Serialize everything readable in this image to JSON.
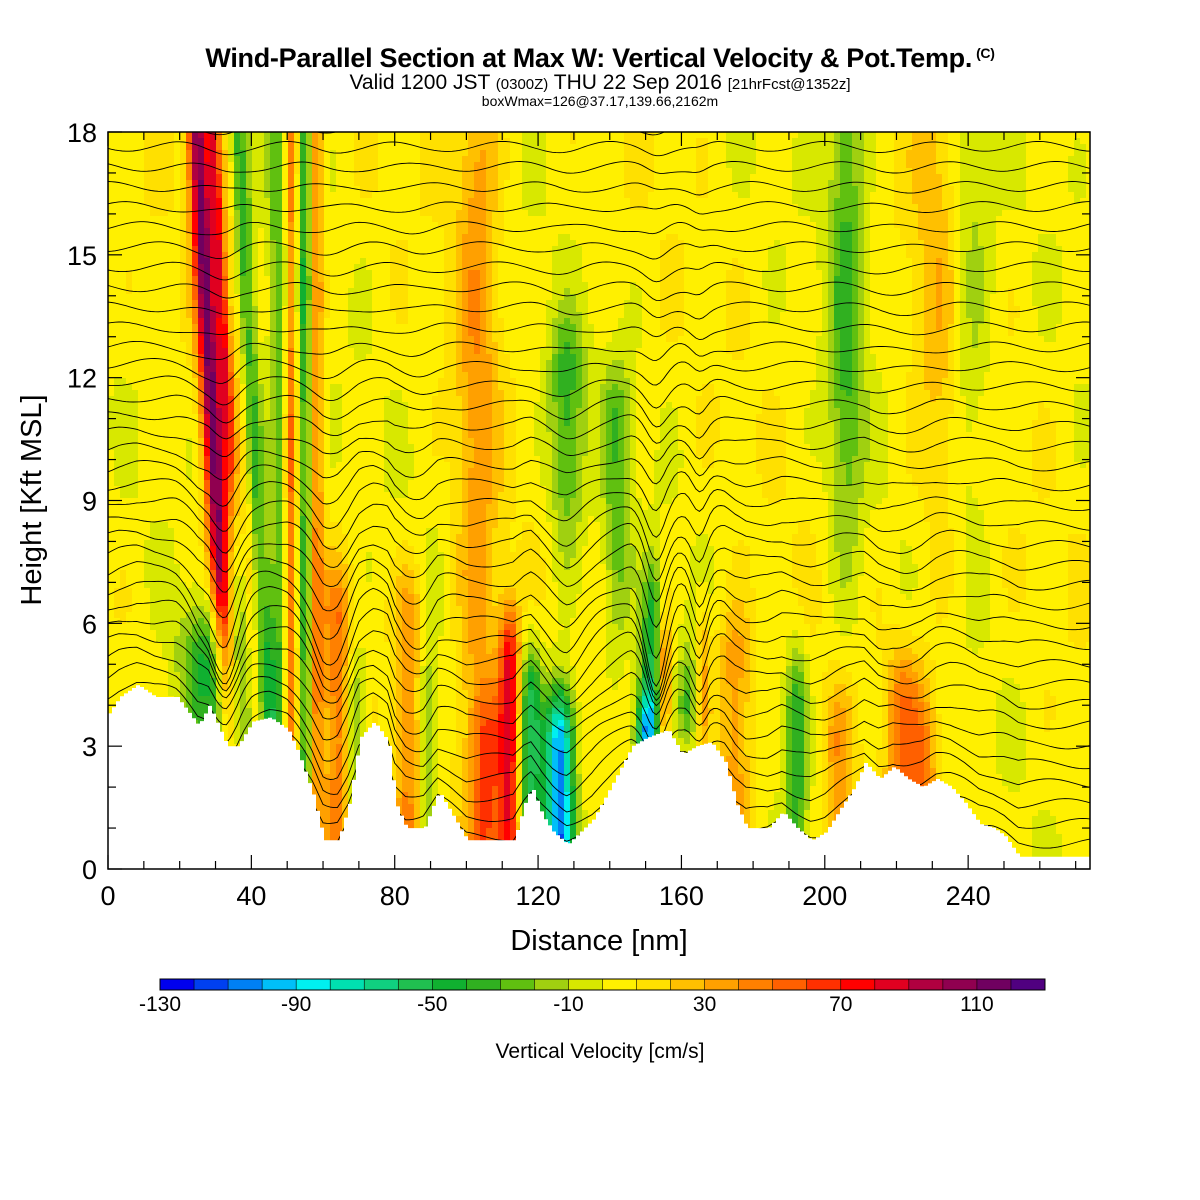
{
  "title": "Wind-Parallel Section at Max W: Vertical Velocity & Pot.Temp.",
  "title_mark": "(C)",
  "subtitle": {
    "pre": "Valid 1200 JST",
    "utc": "(0300Z)",
    "date": "THU 22 Sep 2016",
    "fcst": "[21hrFcst@1352z]"
  },
  "box_note": "boxWmax=126@37.17,139.66,2162m",
  "chart_data": {
    "type": "heatmap",
    "xlabel": "Distance [nm]",
    "ylabel": "Height [Kft MSL]",
    "xlim": [
      0,
      274
    ],
    "ylim": [
      0,
      18
    ],
    "x_ticks": [
      0,
      40,
      80,
      120,
      160,
      200,
      240
    ],
    "y_ticks": [
      0,
      3,
      6,
      9,
      12,
      15,
      18
    ],
    "colorbar": {
      "label": "Vertical Velocity [cm/s]",
      "min": -130,
      "max": 130,
      "step": 10,
      "tick_labels": [
        "-130",
        "-90",
        "-50",
        "-10",
        "30",
        "70",
        "110"
      ],
      "colors": [
        "#0000ee",
        "#0040f0",
        "#0080f4",
        "#00bff8",
        "#00f0f0",
        "#00e0b0",
        "#10d080",
        "#20c050",
        "#10b030",
        "#30b020",
        "#60c010",
        "#a0d010",
        "#d8e800",
        "#fff000",
        "#ffe000",
        "#ffc000",
        "#ffa000",
        "#ff8000",
        "#ff6000",
        "#ff3000",
        "#ff0000",
        "#e00020",
        "#b00040",
        "#900050",
        "#700060",
        "#500080"
      ]
    },
    "terrain_kft": [
      [
        0,
        3.8
      ],
      [
        3,
        4.2
      ],
      [
        8,
        4.5
      ],
      [
        13,
        4.2
      ],
      [
        19,
        4.2
      ],
      [
        25,
        3.5
      ],
      [
        28,
        4.0
      ],
      [
        33,
        3.0
      ],
      [
        36,
        3.0
      ],
      [
        40,
        3.6
      ],
      [
        45,
        3.7
      ],
      [
        50,
        3.4
      ],
      [
        53,
        2.8
      ],
      [
        57,
        1.8
      ],
      [
        60,
        0.7
      ],
      [
        64,
        0.7
      ],
      [
        67,
        1.6
      ],
      [
        70,
        3.2
      ],
      [
        74,
        3.6
      ],
      [
        78,
        3.1
      ],
      [
        80,
        1.6
      ],
      [
        83,
        1.0
      ],
      [
        88,
        1.0
      ],
      [
        92,
        1.9
      ],
      [
        96,
        1.3
      ],
      [
        100,
        0.7
      ],
      [
        113,
        0.7
      ],
      [
        116,
        1.6
      ],
      [
        118,
        2.0
      ],
      [
        121,
        1.3
      ],
      [
        124,
        0.9
      ],
      [
        128,
        0.6
      ],
      [
        135,
        1.2
      ],
      [
        140,
        2.0
      ],
      [
        146,
        3.0
      ],
      [
        150,
        3.2
      ],
      [
        156,
        3.4
      ],
      [
        160,
        2.8
      ],
      [
        164,
        3.0
      ],
      [
        168,
        3.1
      ],
      [
        172,
        2.6
      ],
      [
        175,
        1.6
      ],
      [
        178,
        1.0
      ],
      [
        184,
        1.0
      ],
      [
        188,
        1.4
      ],
      [
        192,
        1.0
      ],
      [
        196,
        0.7
      ],
      [
        200,
        0.9
      ],
      [
        205,
        1.6
      ],
      [
        208,
        2.0
      ],
      [
        211,
        2.6
      ],
      [
        215,
        2.2
      ],
      [
        219,
        2.5
      ],
      [
        223,
        2.2
      ],
      [
        227,
        2.0
      ],
      [
        231,
        2.2
      ],
      [
        235,
        2.0
      ],
      [
        239,
        1.6
      ],
      [
        243,
        1.1
      ],
      [
        247,
        1.0
      ],
      [
        250,
        0.8
      ],
      [
        254,
        0.3
      ],
      [
        265,
        0.3
      ],
      [
        274,
        0.3
      ]
    ],
    "isentrope_count": 38
  }
}
